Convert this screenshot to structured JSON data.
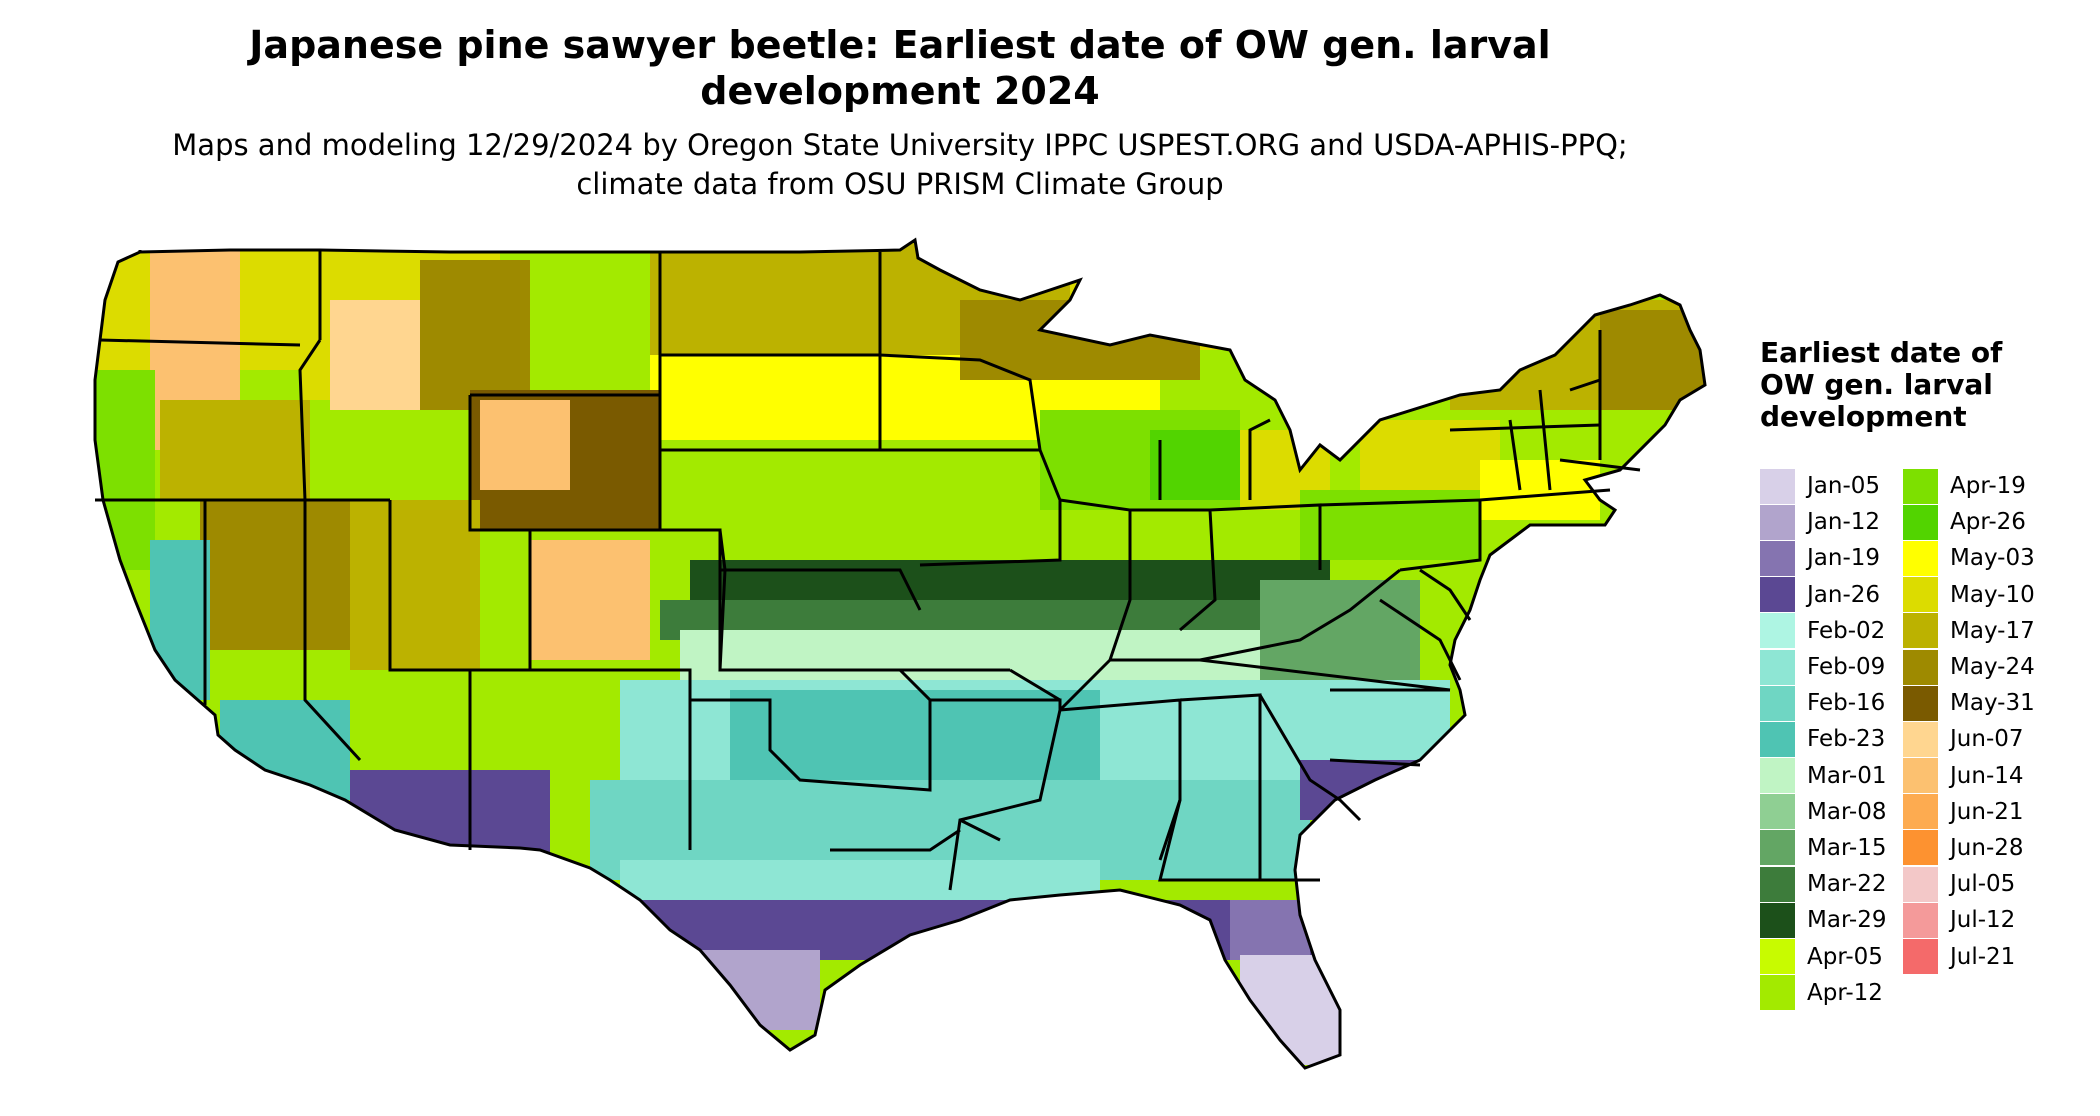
{
  "title": "Japanese pine sawyer beetle: Earliest date of OW gen. larval development 2024",
  "subtitle": "Maps and modeling 12/29/2024 by Oregon State University IPPC USPEST.ORG and USDA-APHIS-PPQ; climate data from OSU PRISM Climate Group",
  "legend": {
    "title": "Earliest date of OW gen. larval development",
    "items": [
      {
        "label": "Jan-05",
        "color": "#d8d0e8"
      },
      {
        "label": "Jan-12",
        "color": "#b1a4cc"
      },
      {
        "label": "Jan-19",
        "color": "#8574b0"
      },
      {
        "label": "Jan-26",
        "color": "#5b4893"
      },
      {
        "label": "Feb-02",
        "color": "#aef5e3"
      },
      {
        "label": "Feb-09",
        "color": "#8ee6d4"
      },
      {
        "label": "Feb-16",
        "color": "#6fd6c3"
      },
      {
        "label": "Feb-23",
        "color": "#4fc4b3"
      },
      {
        "label": "Mar-01",
        "color": "#c0f4c4"
      },
      {
        "label": "Mar-08",
        "color": "#8fcf93"
      },
      {
        "label": "Mar-15",
        "color": "#63a664"
      },
      {
        "label": "Mar-22",
        "color": "#3d7c3b"
      },
      {
        "label": "Mar-29",
        "color": "#1c501a"
      },
      {
        "label": "Apr-05",
        "color": "#c8fb00"
      },
      {
        "label": "Apr-12",
        "color": "#a3ea00"
      },
      {
        "label": "Apr-19",
        "color": "#7de000"
      },
      {
        "label": "Apr-26",
        "color": "#52d400"
      },
      {
        "label": "May-03",
        "color": "#ffff00"
      },
      {
        "label": "May-10",
        "color": "#dcdc00"
      },
      {
        "label": "May-17",
        "color": "#bcb200"
      },
      {
        "label": "May-24",
        "color": "#9e8a00"
      },
      {
        "label": "May-31",
        "color": "#7a5a00"
      },
      {
        "label": "Jun-07",
        "color": "#ffd690"
      },
      {
        "label": "Jun-14",
        "color": "#fcc170"
      },
      {
        "label": "Jun-21",
        "color": "#fdab50"
      },
      {
        "label": "Jun-28",
        "color": "#fd9230"
      },
      {
        "label": "Jul-05",
        "color": "#f3c8c8"
      },
      {
        "label": "Jul-12",
        "color": "#f49a9a"
      },
      {
        "label": "Jul-21",
        "color": "#f46a6a"
      }
    ]
  }
}
